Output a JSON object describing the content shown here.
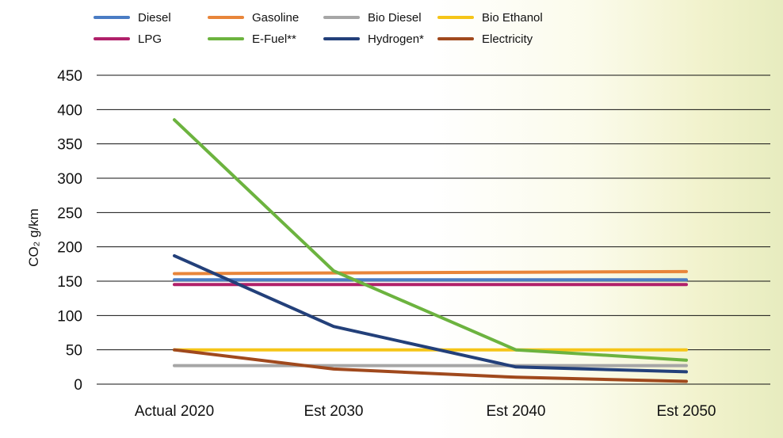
{
  "chart_data": {
    "type": "line",
    "categories": [
      "Actual 2020",
      "Est 2030",
      "Est 2040",
      "Est 2050"
    ],
    "ylabel": "CO₂ g/km",
    "ylim": [
      0,
      450
    ],
    "yticks": [
      0,
      50,
      100,
      150,
      200,
      250,
      300,
      350,
      400,
      450
    ],
    "grid": true,
    "legend_position": "top",
    "series": [
      {
        "name": "Diesel",
        "color": "#4a7cc4",
        "values": [
          152,
          152,
          152,
          152
        ]
      },
      {
        "name": "Gasoline",
        "color": "#e8853a",
        "values": [
          161,
          162,
          163,
          164
        ]
      },
      {
        "name": "Bio Diesel",
        "color": "#a6a6a6",
        "values": [
          27,
          27,
          27,
          27
        ]
      },
      {
        "name": "Bio Ethanol",
        "color": "#f5c518",
        "values": [
          50,
          50,
          50,
          50
        ]
      },
      {
        "name": "LPG",
        "color": "#b0206a",
        "values": [
          145,
          145,
          145,
          145
        ]
      },
      {
        "name": "E-Fuel**",
        "color": "#6cb33f",
        "values": [
          385,
          165,
          50,
          35
        ]
      },
      {
        "name": "Hydrogen*",
        "color": "#23407a",
        "values": [
          187,
          84,
          25,
          18
        ]
      },
      {
        "name": "Electricity",
        "color": "#a0491d",
        "values": [
          50,
          22,
          10,
          4
        ]
      }
    ]
  }
}
